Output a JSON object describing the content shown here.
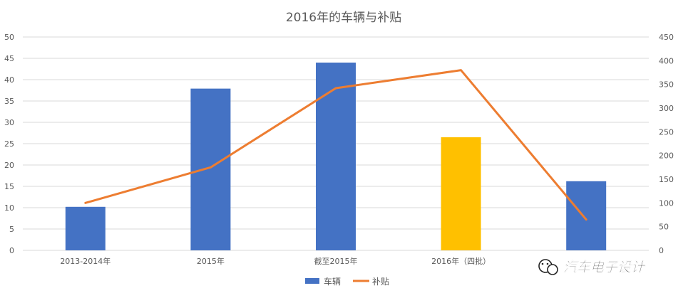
{
  "chart_data": {
    "type": "bar",
    "title": "2016年的车辆与补贴",
    "categories": [
      "2013-2014年",
      "2015年",
      "截至2015年",
      "2016年（四批）",
      ""
    ],
    "series": [
      {
        "name": "车辆",
        "type": "bar",
        "axis": "left",
        "values": [
          10.2,
          37.9,
          44,
          26.5,
          16.2
        ],
        "color": "#4472C4",
        "highlight": {
          "index": 3,
          "color": "#FFC000"
        }
      },
      {
        "name": "补贴",
        "type": "line",
        "axis": "right",
        "values": [
          100,
          175,
          342,
          380,
          65
        ],
        "color": "#ED7D31"
      }
    ],
    "y_left": {
      "min": 0,
      "max": 50,
      "step": 5
    },
    "y_right": {
      "min": 0,
      "max": 450,
      "step": 50
    },
    "grid": true,
    "legend_position": "bottom"
  },
  "watermark": {
    "text": "汽车电子设计",
    "icon": "wechat-icon"
  }
}
